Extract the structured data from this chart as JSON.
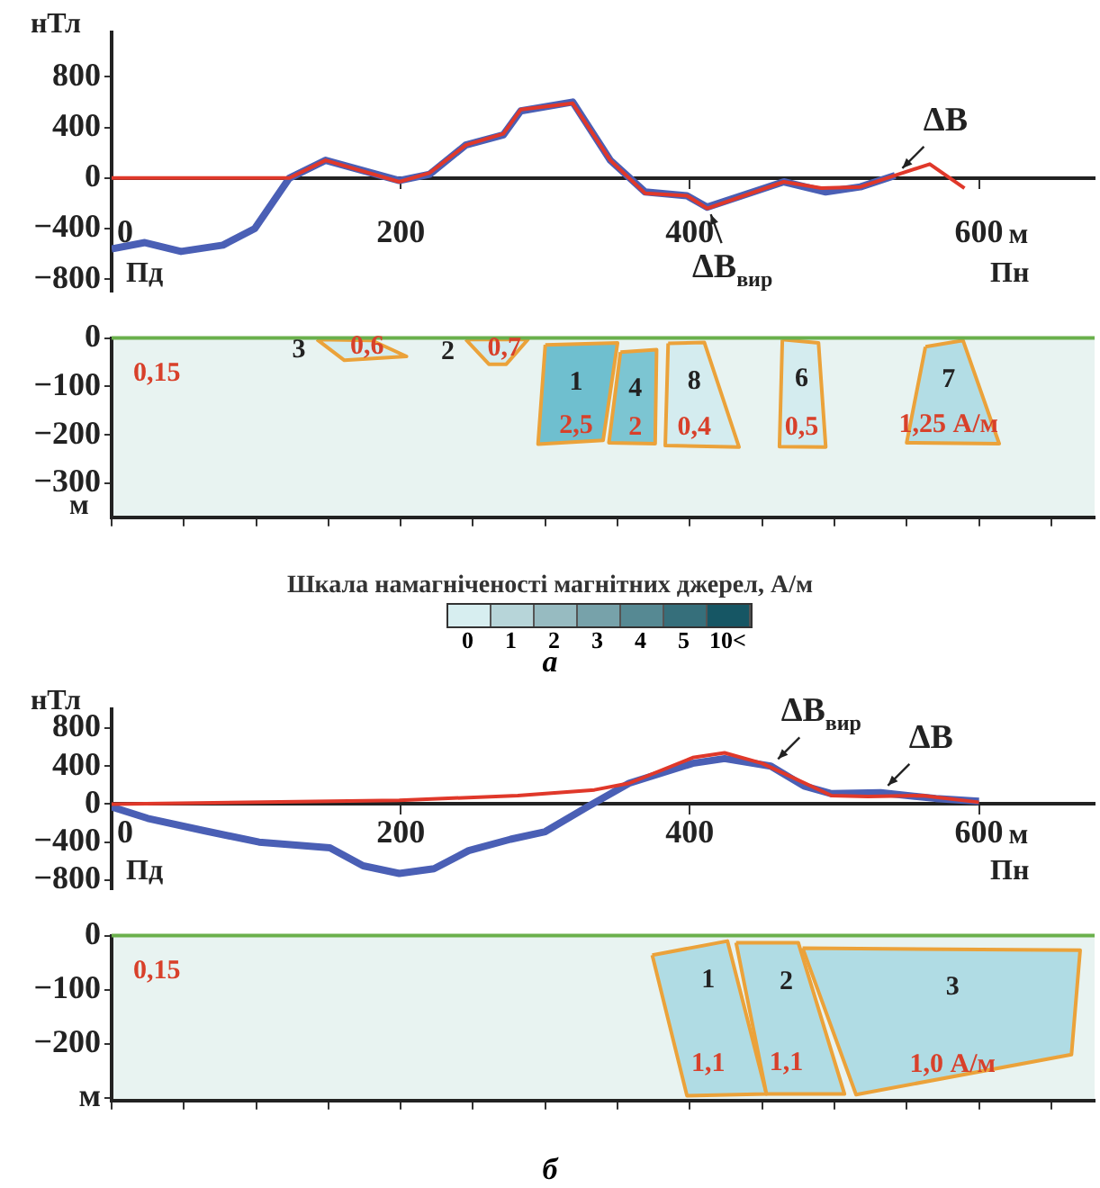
{
  "chart_data": [
    {
      "type": "line",
      "ylabel": "нТл",
      "xlabel": "м",
      "xlim": [
        0,
        680
      ],
      "xticks": [
        0,
        200,
        400,
        600
      ],
      "ylim": [
        -900,
        1150
      ],
      "yticks": [
        800,
        400,
        0,
        -400,
        -800
      ],
      "series": [
        {
          "color": "#4a5fb5",
          "x": [
            0,
            23,
            48,
            77,
            99,
            123,
            148,
            199,
            220,
            245,
            271,
            283,
            319,
            345,
            369,
            398,
            412,
            465,
            494,
            518,
            542
          ],
          "values": [
            -560,
            -510,
            -580,
            -530,
            -400,
            0,
            140,
            -20,
            30,
            260,
            340,
            530,
            600,
            140,
            -110,
            -140,
            -230,
            -30,
            -110,
            -70,
            20
          ]
        },
        {
          "color": "#e0382a",
          "x": [
            0,
            123,
            148,
            199,
            220,
            245,
            271,
            283,
            319,
            345,
            369,
            398,
            412,
            465,
            491,
            518,
            542,
            566,
            590
          ],
          "values": [
            0,
            0,
            140,
            -30,
            40,
            260,
            350,
            540,
            590,
            140,
            -120,
            -140,
            -240,
            -30,
            -80,
            -70,
            20,
            110,
            -80
          ]
        }
      ],
      "annotations": [
        "Пд",
        "Пн",
        {
          "text": "ΔB",
          "x": 542,
          "y": 20
        },
        {
          "text": "ΔB$_{вир}$",
          "x": 412,
          "y": -230
        }
      ]
    },
    {
      "type": "area",
      "ylabel": "м",
      "xlim": [
        0,
        680
      ],
      "xticks": [
        {
          "value": 0,
          "label": null
        },
        {
          "value": 50,
          "label": null
        },
        {
          "value": 100,
          "label": null
        },
        {
          "value": 150,
          "label": null
        },
        {
          "value": 200,
          "label": null
        },
        {
          "value": 250,
          "label": null
        },
        {
          "value": 300,
          "label": null
        },
        {
          "value": 350,
          "label": null
        },
        {
          "value": 400,
          "label": null
        },
        {
          "value": 450,
          "label": null
        },
        {
          "value": 500,
          "label": null
        },
        {
          "value": 550,
          "label": null
        },
        {
          "value": 600,
          "label": null
        },
        {
          "value": 650,
          "label": null
        }
      ],
      "ylim": [
        -370,
        0
      ],
      "yticks": [
        0,
        -100,
        -200,
        -300
      ],
      "tick_labels": "y",
      "ref_lines": [
        {
          "axis": "y",
          "value": 0,
          "color": "#6ab04c"
        }
      ],
      "series": [
        {
          "name": "3",
          "color": "#d4ecef",
          "x": [
            142,
            180,
            204,
            161,
            142
          ],
          "values": [
            -3,
            -5,
            -38,
            -46,
            -3
          ]
        },
        {
          "name": "2",
          "color": "#d4ecef",
          "x": [
            245,
            288,
            273,
            261,
            245
          ],
          "values": [
            -3,
            -3,
            -54,
            -54,
            -3
          ]
        },
        {
          "name": "1",
          "color": "#6fbfcf",
          "x": [
            300,
            350,
            340,
            295,
            300
          ],
          "values": [
            -14,
            -10,
            -211,
            -219,
            -14
          ]
        },
        {
          "name": "4",
          "color": "#7cc5d2",
          "x": [
            352,
            377,
            376,
            344,
            352
          ],
          "values": [
            -29,
            -24,
            -218,
            -216,
            -29
          ]
        },
        {
          "name": "8",
          "color": "#d4ecef",
          "x": [
            385,
            410,
            434,
            383,
            385
          ],
          "values": [
            -11,
            -9,
            -225,
            -222,
            -11
          ]
        },
        {
          "name": "6",
          "color": "#d4ecef",
          "x": [
            464,
            489,
            494,
            462,
            464
          ],
          "values": [
            -3,
            -10,
            -225,
            -224,
            -3
          ]
        },
        {
          "name": "7",
          "color": "#b3dde5",
          "x": [
            563,
            589,
            614,
            550,
            563
          ],
          "values": [
            -18,
            -5,
            -218,
            -216,
            -18
          ]
        }
      ],
      "annotations": [
        "0,15",
        "0,6",
        "0,7",
        "2,5",
        "2",
        "0,4",
        "0,5",
        "1,25 А/м"
      ],
      "clabel": "Шкала намагніченості магнітних джерел, А/м",
      "clim": [
        0,
        7
      ],
      "cticks": [
        {
          "value": 0.5,
          "label": "0"
        },
        {
          "value": 1.5,
          "label": "1"
        },
        {
          "value": 2.5,
          "label": "2"
        },
        {
          "value": 3.5,
          "label": "3"
        },
        {
          "value": 4.5,
          "label": "4"
        },
        {
          "value": 5.5,
          "label": "5"
        },
        {
          "value": 6.5,
          "label": "10<"
        }
      ],
      "title": "а"
    },
    {
      "type": "line",
      "ylabel": "нТл",
      "xlabel": "м",
      "xlim": [
        0,
        680
      ],
      "xticks": [
        0,
        200,
        400,
        600
      ],
      "ylim": [
        -900,
        1000
      ],
      "yticks": [
        800,
        400,
        0,
        -400,
        -800
      ],
      "series": [
        {
          "color": "#4a5fb5",
          "x": [
            0,
            25,
            64,
            102,
            151,
            174,
            199,
            223,
            247,
            276,
            300,
            329,
            358,
            402,
            424,
            456,
            479,
            498,
            532,
            570,
            600
          ],
          "values": [
            -30,
            -150,
            -280,
            -400,
            -460,
            -650,
            -730,
            -680,
            -490,
            -370,
            -290,
            -30,
            220,
            430,
            480,
            400,
            190,
            110,
            120,
            60,
            30
          ]
        },
        {
          "color": "#e0382a",
          "x": [
            0,
            199,
            281,
            334,
            358,
            402,
            424,
            450,
            498,
            523,
            561,
            600
          ],
          "values": [
            0,
            40,
            90,
            150,
            220,
            490,
            540,
            430,
            90,
            80,
            90,
            20
          ]
        }
      ],
      "annotations": [
        "Пд",
        "Пн",
        {
          "text": "ΔB",
          "x": 532,
          "y": 120
        },
        {
          "text": "ΔB$_{вир}$",
          "x": 456,
          "y": 400
        }
      ]
    },
    {
      "type": "area",
      "xlim": [
        0,
        680
      ],
      "xticks": [
        {
          "value": 0,
          "label": null
        },
        {
          "value": 50,
          "label": null
        },
        {
          "value": 100,
          "label": null
        },
        {
          "value": 150,
          "label": null
        },
        {
          "value": 200,
          "label": null
        },
        {
          "value": 250,
          "label": null
        },
        {
          "value": 300,
          "label": null
        },
        {
          "value": 350,
          "label": null
        },
        {
          "value": 400,
          "label": null
        },
        {
          "value": 450,
          "label": null
        },
        {
          "value": 500,
          "label": null
        },
        {
          "value": 550,
          "label": null
        },
        {
          "value": 600,
          "label": null
        },
        {
          "value": 650,
          "label": null
        }
      ],
      "ylim": [
        -305,
        0
      ],
      "yticks": [
        0,
        -100,
        -200,
        {
          "value": -300,
          "label": "м"
        }
      ],
      "tick_labels": "y",
      "ref_lines": [
        {
          "axis": "y",
          "value": 0,
          "color": "#6ab04c"
        }
      ],
      "series": [
        {
          "name": "1",
          "color": "#b0dce4",
          "x": [
            374,
            426,
            453,
            398,
            374
          ],
          "values": [
            -36,
            -10,
            -293,
            -296,
            -36
          ]
        },
        {
          "name": "2",
          "color": "#b0dce4",
          "x": [
            432,
            475,
            507,
            453,
            432
          ],
          "values": [
            -13,
            -13,
            -293,
            -293,
            -13
          ]
        },
        {
          "name": "3",
          "color": "#b0dce4",
          "x": [
            478,
            670,
            664,
            515,
            478
          ],
          "values": [
            -23,
            -27,
            -220,
            -294,
            -23
          ]
        }
      ],
      "annotations": [
        "0,15",
        "1,1",
        "1,1",
        "1,0 А/м"
      ],
      "title": "б"
    }
  ]
}
